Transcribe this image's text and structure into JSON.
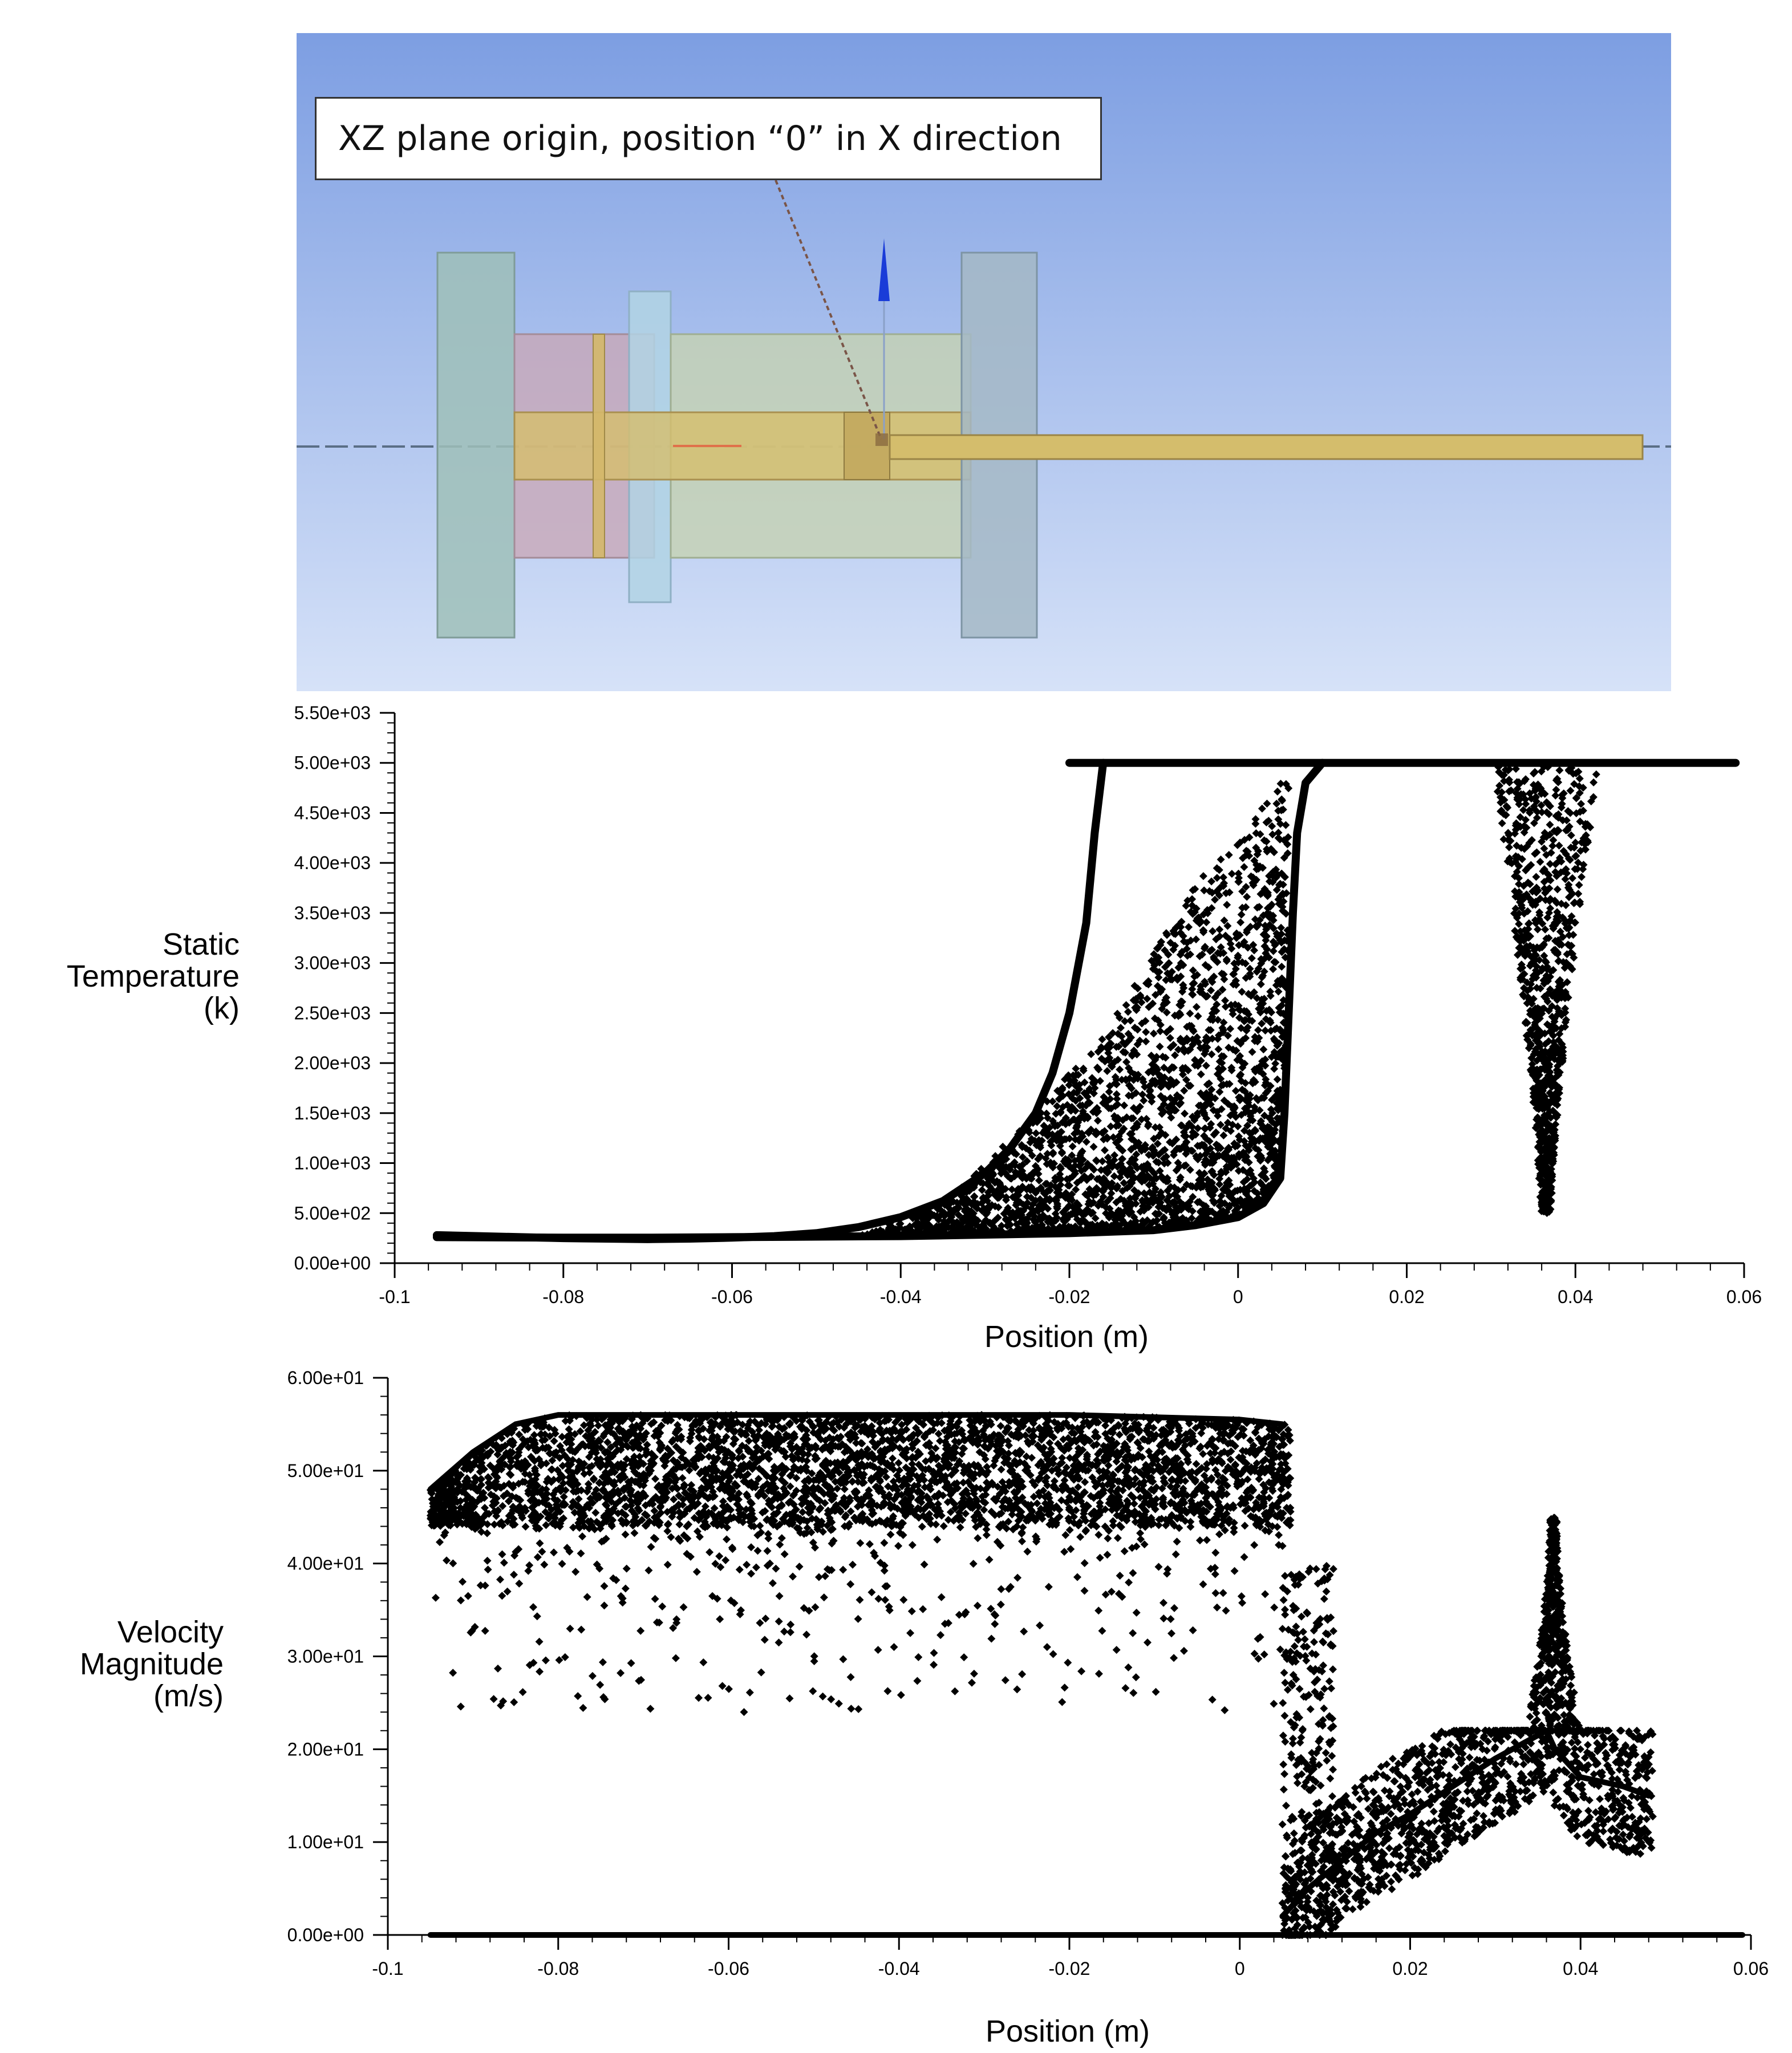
{
  "annotation": {
    "text": "XZ plane origin, position “0” in X direction"
  },
  "chart_data": [
    {
      "type": "scatter",
      "title": "",
      "xlabel": "Position (m)",
      "ylabel_lines": [
        "Static",
        "Temperature",
        "(k)"
      ],
      "xlim": [
        -0.1,
        0.06
      ],
      "ylim": [
        0,
        5500
      ],
      "x_ticks": [
        -0.1,
        -0.08,
        -0.06,
        -0.04,
        -0.02,
        0,
        0.02,
        0.04,
        0.06
      ],
      "x_tick_labels": [
        "-0.1",
        "-0.08",
        "-0.06",
        "-0.04",
        "-0.02",
        "0",
        "0.02",
        "0.04",
        "0.06"
      ],
      "y_ticks": [
        0,
        500,
        1000,
        1500,
        2000,
        2500,
        3000,
        3500,
        4000,
        4500,
        5000,
        5500
      ],
      "y_tick_labels": [
        "0.00e+00",
        "5.00e+02",
        "1.00e+03",
        "1.50e+03",
        "2.00e+03",
        "2.50e+03",
        "3.00e+03",
        "3.50e+03",
        "4.00e+03",
        "4.50e+03",
        "5.00e+03",
        "5.50e+03"
      ],
      "grid": false,
      "series": [
        {
          "points": [
            [
              -0.095,
              280
            ],
            [
              -0.09,
              270
            ],
            [
              -0.085,
              260
            ],
            [
              -0.08,
              250
            ],
            [
              -0.075,
              245
            ],
            [
              -0.07,
              240
            ],
            [
              -0.065,
              245
            ],
            [
              -0.06,
              255
            ],
            [
              -0.055,
              270
            ],
            [
              -0.05,
              300
            ],
            [
              -0.045,
              360
            ],
            [
              -0.04,
              460
            ],
            [
              -0.035,
              620
            ],
            [
              -0.03,
              900
            ],
            [
              -0.027,
              1150
            ],
            [
              -0.024,
              1500
            ],
            [
              -0.022,
              1900
            ],
            [
              -0.02,
              2500
            ],
            [
              -0.018,
              3400
            ],
            [
              -0.017,
              4300
            ],
            [
              -0.016,
              5000
            ]
          ]
        },
        {
          "points": [
            [
              -0.095,
              260
            ],
            [
              -0.08,
              255
            ],
            [
              -0.07,
              255
            ],
            [
              -0.06,
              260
            ],
            [
              -0.05,
              265
            ],
            [
              -0.04,
              270
            ],
            [
              -0.03,
              285
            ],
            [
              -0.02,
              300
            ],
            [
              -0.01,
              330
            ],
            [
              -0.005,
              380
            ],
            [
              0,
              460
            ],
            [
              0.003,
              600
            ],
            [
              0.005,
              850
            ],
            [
              0.0055,
              1500
            ],
            [
              0.006,
              2500
            ],
            [
              0.0065,
              3500
            ],
            [
              0.007,
              4300
            ],
            [
              0.008,
              4800
            ],
            [
              0.01,
              5000
            ]
          ]
        },
        {
          "points": [
            [
              -0.02,
              5000
            ],
            [
              0,
              5000
            ],
            [
              0.02,
              5000
            ],
            [
              0.04,
              5000
            ],
            [
              0.059,
              5000
            ]
          ]
        }
      ],
      "scatter_regions": [
        {
          "name": "fan",
          "xmin": -0.045,
          "xmax": 0.006,
          "upper": [
            [
              -0.045,
              300
            ],
            [
              -0.035,
              600
            ],
            [
              -0.025,
              1400
            ],
            [
              -0.015,
              2400
            ],
            [
              -0.005,
              3800
            ],
            [
              0.0,
              4200
            ],
            [
              0.004,
              4700
            ],
            [
              0.006,
              5000
            ]
          ]
        },
        {
          "name": "dip",
          "x_center": 0.0365,
          "top_width": 0.0115,
          "bottom_value": 500
        }
      ]
    },
    {
      "type": "scatter",
      "title": "",
      "xlabel": "Position (m)",
      "ylabel_lines": [
        "Velocity",
        "Magnitude",
        "(m/s)"
      ],
      "xlim": [
        -0.1,
        0.06
      ],
      "ylim": [
        0,
        60
      ],
      "x_ticks": [
        -0.1,
        -0.08,
        -0.06,
        -0.04,
        -0.02,
        0,
        0.02,
        0.04,
        0.06
      ],
      "x_tick_labels": [
        "-0.1",
        "-0.08",
        "-0.06",
        "-0.04",
        "-0.02",
        "0",
        "0.02",
        "0.04",
        "0.06"
      ],
      "y_ticks": [
        0,
        10,
        20,
        30,
        40,
        50,
        60
      ],
      "y_tick_labels": [
        "0.00e+00",
        "1.00e+01",
        "2.00e+01",
        "3.00e+01",
        "4.00e+01",
        "5.00e+01",
        "6.00e+01"
      ],
      "grid": false,
      "series": [
        {
          "points": [
            [
              -0.095,
              0
            ],
            [
              0.059,
              0
            ]
          ]
        },
        {
          "points": [
            [
              -0.095,
              48
            ],
            [
              -0.09,
              52
            ],
            [
              -0.085,
              55
            ],
            [
              -0.08,
              56
            ],
            [
              -0.06,
              56
            ],
            [
              -0.04,
              56
            ],
            [
              -0.02,
              56
            ],
            [
              0,
              55.5
            ],
            [
              0.005,
              55
            ]
          ]
        },
        {
          "points": [
            [
              0.005,
              2
            ],
            [
              0.008,
              5
            ],
            [
              0.012,
              8
            ],
            [
              0.016,
              11
            ],
            [
              0.02,
              13
            ],
            [
              0.025,
              16
            ],
            [
              0.03,
              19
            ],
            [
              0.034,
              21
            ],
            [
              0.036,
              22
            ],
            [
              0.037,
              20
            ],
            [
              0.04,
              17
            ],
            [
              0.045,
              16
            ],
            [
              0.048,
              15
            ]
          ]
        }
      ],
      "scatter_regions": [
        {
          "name": "band",
          "xmin": -0.095,
          "xmax": 0.006,
          "ymin": 44,
          "ymax": 56
        },
        {
          "name": "outliers",
          "xmin": -0.095,
          "xmax": 0.006,
          "ymin": 24,
          "ymax": 44
        },
        {
          "name": "drop",
          "xmin": 0.005,
          "xmax": 0.0485,
          "ymin": 0,
          "ymax": 22
        },
        {
          "name": "spike",
          "x_center": 0.0368,
          "peak": 45,
          "base": 22
        }
      ]
    }
  ]
}
